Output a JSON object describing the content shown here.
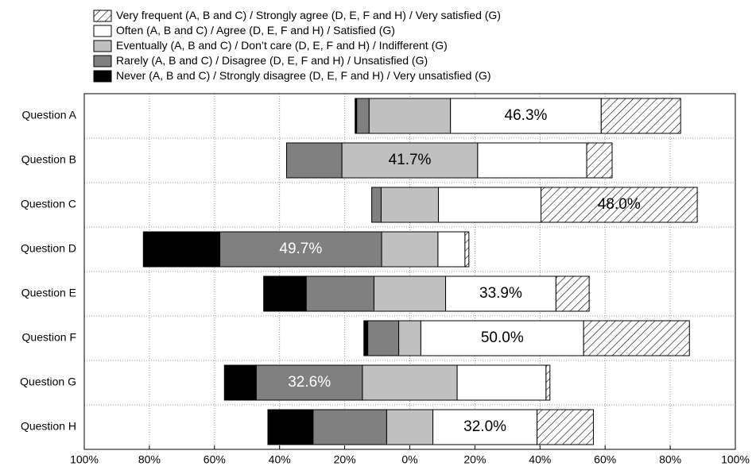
{
  "chart_data": {
    "type": "diverging-stacked-bar",
    "categories": [
      "Question A",
      "Question B",
      "Question C",
      "Question D",
      "Question E",
      "Question F",
      "Question G",
      "Question H"
    ],
    "series": [
      {
        "name": "Never (A, B and C) / Strongly disagree (D, E, F and H) / Very unsatisfied (G)",
        "color": "#000000",
        "values": [
          0.5,
          0,
          0,
          23.5,
          13.1,
          1.2,
          9.8,
          13.9
        ],
        "value_labels": [
          null,
          null,
          null,
          null,
          null,
          null,
          null,
          null
        ]
      },
      {
        "name": "Rarely (A, B and C) / Disagree (D, E, F and H) / Unsatisfied (G)",
        "color": "#808080",
        "values": [
          3.8,
          17,
          2.9,
          49.7,
          20.8,
          9.5,
          32.6,
          22.6
        ],
        "value_labels": [
          null,
          null,
          null,
          "49.7%",
          null,
          null,
          "32.6%",
          null
        ]
      },
      {
        "name": "Eventually (A, B and C) / Don’t care (D, E, F and H) / Indifferent (G)",
        "color": "#c0c0c0",
        "values": [
          25,
          41.7,
          17.6,
          17.3,
          22,
          6.8,
          29.1,
          14.2
        ],
        "value_labels": [
          null,
          "41.7%",
          null,
          null,
          null,
          null,
          null,
          null
        ]
      },
      {
        "name": "Often (A, B and C) / Agree (D, E, F and H) / Satisfied (G)",
        "color": "#ffffff",
        "values": [
          46.3,
          33.5,
          31.5,
          8.3,
          33.9,
          50.0,
          27.3,
          32.0
        ],
        "value_labels": [
          "46.3%",
          null,
          null,
          null,
          "33.9%",
          "50.0%",
          null,
          "32.0%"
        ]
      },
      {
        "name": "Very frequent (A, B and C) / Strongly agree (D, E, F and H) / Very satisfied (G)",
        "color": "#ffffff",
        "pattern": "diagonal-hatch",
        "values": [
          24.4,
          7.8,
          48.0,
          1.2,
          10.2,
          32.5,
          1.2,
          17.3
        ],
        "value_labels": [
          null,
          null,
          "48.0%",
          null,
          null,
          null,
          null,
          null
        ]
      }
    ],
    "center_series": 2,
    "xlim": [
      -100,
      100
    ],
    "xticks": [
      {
        "value": -100,
        "label": "100%"
      },
      {
        "value": -80,
        "label": "80%"
      },
      {
        "value": -60,
        "label": "60%"
      },
      {
        "value": -40,
        "label": "40%"
      },
      {
        "value": -20,
        "label": "20%"
      },
      {
        "value": 0,
        "label": "0%"
      },
      {
        "value": 20,
        "label": "20%"
      },
      {
        "value": 40,
        "label": "40%"
      },
      {
        "value": 60,
        "label": "60%"
      },
      {
        "value": 80,
        "label": "80%"
      },
      {
        "value": 100,
        "label": "100%"
      }
    ],
    "grid": true,
    "legend": "top"
  }
}
